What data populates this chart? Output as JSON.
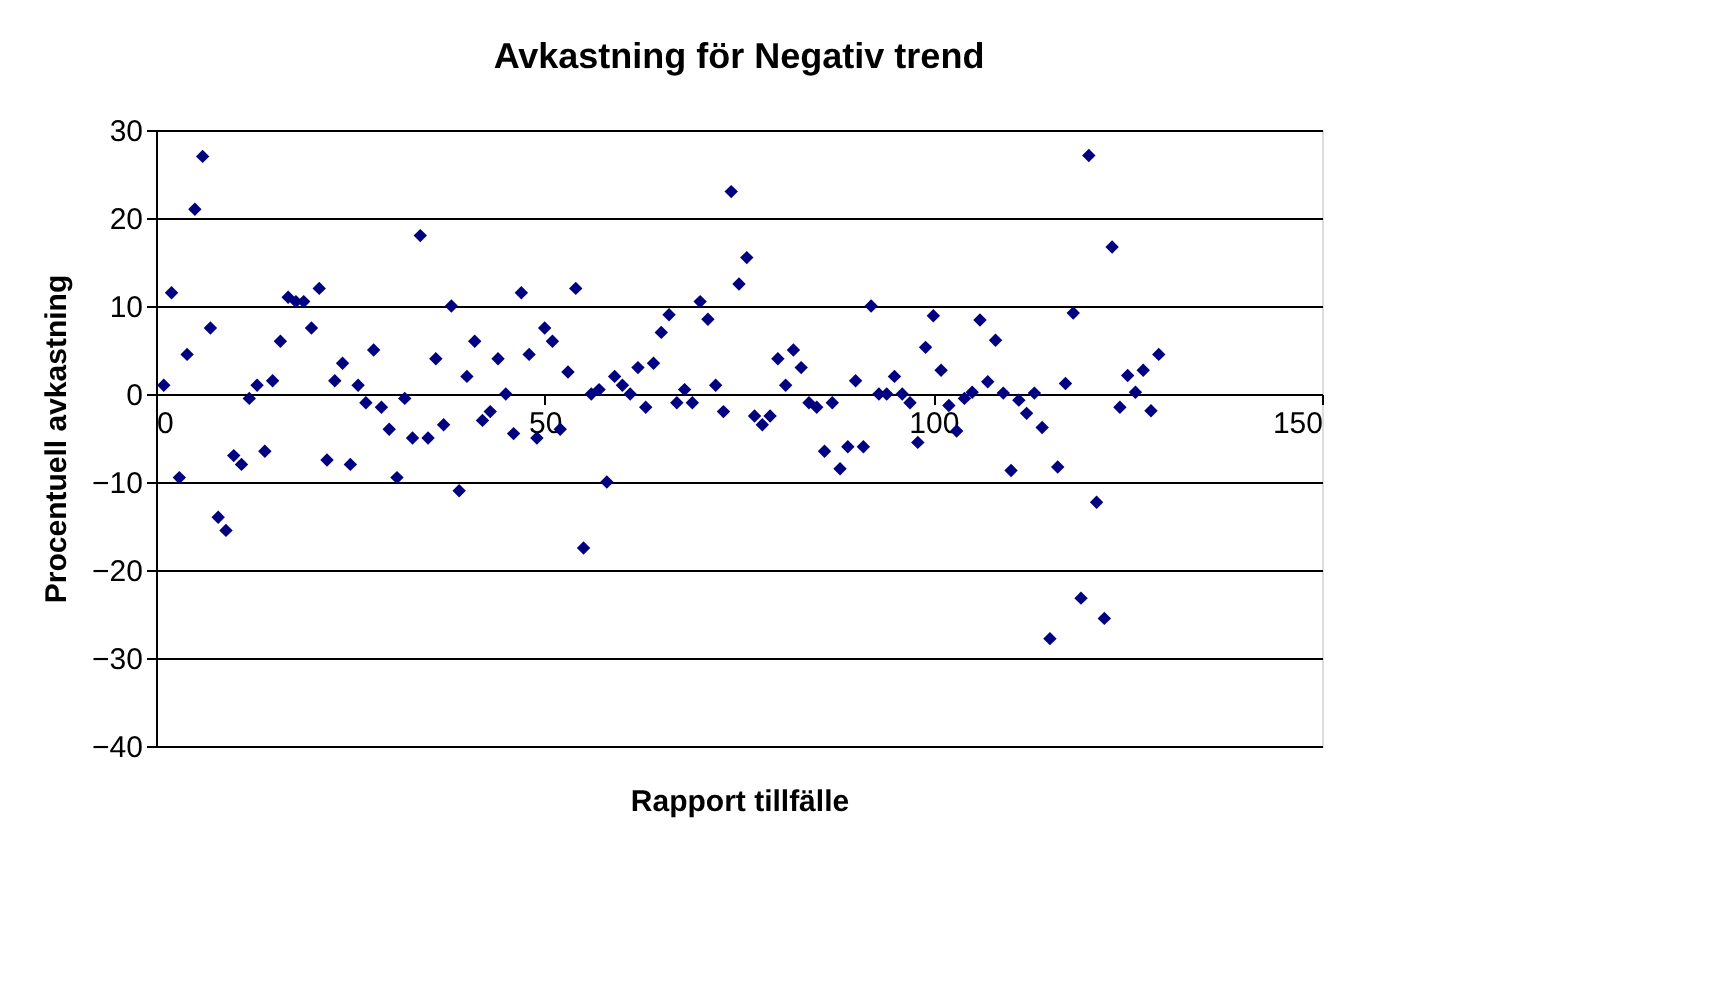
{
  "chart_data": {
    "type": "scatter",
    "title": "Avkastning för Negativ trend",
    "xlabel": "Rapport tillfälle",
    "ylabel": "Procentuell avkastning",
    "x": [
      1,
      2,
      3,
      4,
      5,
      6,
      7,
      8,
      9,
      10,
      11,
      12,
      13,
      14,
      15,
      16,
      17,
      18,
      19,
      20,
      21,
      22,
      23,
      24,
      25,
      26,
      27,
      28,
      29,
      30,
      31,
      32,
      33,
      34,
      35,
      36,
      37,
      38,
      39,
      40,
      41,
      42,
      43,
      44,
      45,
      46,
      47,
      48,
      49,
      50,
      51,
      52,
      53,
      54,
      55,
      56,
      57,
      58,
      59,
      60,
      61,
      62,
      63,
      64,
      65,
      66,
      67,
      68,
      69,
      70,
      71,
      72,
      73,
      74,
      75,
      76,
      77,
      78,
      79,
      80,
      81,
      82,
      83,
      84,
      85,
      86,
      87,
      88,
      89,
      90,
      91,
      92,
      93,
      94,
      95,
      96,
      97,
      98,
      99,
      100,
      101,
      102,
      103,
      104,
      105,
      106,
      107,
      108,
      109,
      110,
      111,
      112,
      113,
      114,
      115,
      116,
      117,
      118,
      119,
      120,
      121,
      122,
      123,
      124,
      125,
      126,
      127,
      128,
      129
    ],
    "series": [
      {
        "color": "#000080",
        "values": [
          1,
          11.5,
          -9.5,
          4.5,
          21,
          27,
          7.5,
          -14,
          -15.5,
          -7,
          -8,
          -0.5,
          1,
          -6.5,
          1.5,
          6,
          11,
          10.5,
          10.5,
          7.5,
          12,
          -7.5,
          1.5,
          3.5,
          -8,
          1,
          -1,
          5,
          -1.5,
          -4,
          -9.5,
          -0.5,
          -5,
          18,
          -5,
          4,
          -3.5,
          10,
          -11,
          2,
          6,
          -3,
          -2,
          4,
          0,
          -4.5,
          11.5,
          4.5,
          -5,
          7.5,
          6,
          -4,
          2.5,
          12,
          -17.5,
          0,
          0.5,
          -10,
          2,
          1,
          0,
          3,
          -1.5,
          3.5,
          7,
          9,
          -1,
          0.5,
          -1,
          10.5,
          8.5,
          1,
          -2,
          23,
          12.5,
          15.5,
          -2.5,
          -3.5,
          -2.5,
          4,
          1,
          5,
          3,
          -1,
          -1.5,
          -6.5,
          -1,
          -8.5,
          -6,
          1.5,
          -6,
          10,
          0,
          0,
          2,
          0,
          -1,
          -5.5,
          5.3,
          8.9,
          2.7,
          -1.3,
          -4.2,
          -0.5,
          0.2,
          8.4,
          1.4,
          6.1,
          0.1,
          -8.7,
          -0.7,
          -2.2,
          0.1,
          -3.8,
          -27.8,
          -8.3,
          1.2,
          9.2,
          -23.2,
          27.1,
          -12.3,
          -25.5,
          16.7,
          -1.5,
          2.1,
          0.2,
          2.7,
          -1.9,
          4.5
        ]
      }
    ],
    "xlim": [
      0,
      150
    ],
    "xticks": [
      0,
      50,
      100,
      150
    ],
    "ylim": [
      -40,
      30
    ],
    "yticks": [
      -40,
      -30,
      -20,
      -10,
      0,
      10,
      20,
      30
    ],
    "grid": "y",
    "marker": "diamond",
    "legend": false
  }
}
